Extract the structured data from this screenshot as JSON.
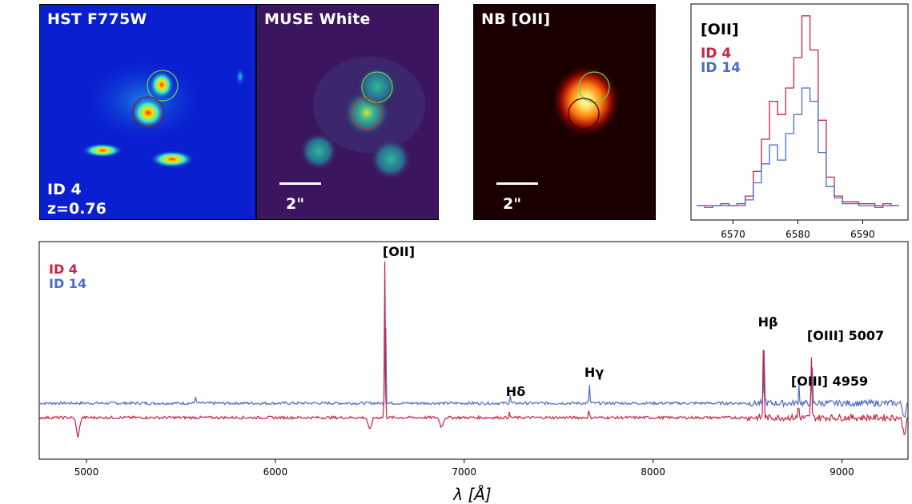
{
  "images": {
    "hst": {
      "title": "HST F775W",
      "id_label": "ID 4",
      "z_label": "z=0.76"
    },
    "muse": {
      "title": "MUSE White",
      "scale": "2\""
    },
    "nb": {
      "title": "NB [OII]",
      "scale": "2\""
    }
  },
  "colors": {
    "id4": "#cc2244",
    "id14": "#4a6cc8",
    "hst_bg": "#0a1fd0",
    "muse_bg": "#3b155e",
    "nb_bg": "#1a0000",
    "circle_red": "#c0392b",
    "circle_green": "#6ccf4f"
  },
  "chart_data": [
    {
      "type": "line",
      "title": "[OII]",
      "xlabel": "",
      "ylabel": "",
      "xlim": [
        6565,
        6596
      ],
      "xticks": [
        6570,
        6580,
        6590
      ],
      "legend": [
        "ID 4",
        "ID 14"
      ],
      "legend_position": "top-left",
      "drawstyle": "steps",
      "series": [
        {
          "name": "ID 4",
          "color": "#cc2244",
          "x": [
            6565,
            6566.25,
            6567.5,
            6568.75,
            6570,
            6571.25,
            6572.5,
            6573.75,
            6575,
            6576.25,
            6577.5,
            6578.75,
            6580,
            6581.25,
            6582.5,
            6583.75,
            6585,
            6586.25,
            6587.5,
            6588.75,
            6590,
            6591.25,
            6592.5,
            6593.75,
            6595
          ],
          "y": [
            0.0,
            0.0,
            0.0,
            0.01,
            0.0,
            0.01,
            0.05,
            0.18,
            0.35,
            0.55,
            0.48,
            0.62,
            0.78,
            1.0,
            0.82,
            0.45,
            0.15,
            0.05,
            0.02,
            0.02,
            0.01,
            0.01,
            0.0,
            0.01,
            0.0
          ]
        },
        {
          "name": "ID 14",
          "color": "#4a6cc8",
          "x": [
            6565,
            6566.25,
            6567.5,
            6568.75,
            6570,
            6571.25,
            6572.5,
            6573.75,
            6575,
            6576.25,
            6577.5,
            6578.75,
            6580,
            6581.25,
            6582.5,
            6583.75,
            6585,
            6586.25,
            6587.5,
            6588.75,
            6590,
            6591.25,
            6592.5,
            6593.75,
            6595
          ],
          "y": [
            0.0,
            -0.01,
            0.0,
            0.0,
            0.0,
            0.0,
            0.03,
            0.12,
            0.22,
            0.32,
            0.24,
            0.38,
            0.48,
            0.62,
            0.55,
            0.28,
            0.1,
            0.04,
            0.01,
            0.01,
            0.0,
            0.0,
            -0.01,
            0.0,
            0.0
          ]
        }
      ]
    },
    {
      "type": "line",
      "title": "",
      "xlabel": "λ [Å]",
      "ylabel": "",
      "xlim": [
        4750,
        9350
      ],
      "xticks": [
        5000,
        6000,
        7000,
        8000,
        9000
      ],
      "legend": [
        "ID 4",
        "ID 14"
      ],
      "legend_position": "top-left",
      "annotations": [
        {
          "text": "[OII]",
          "x": 6570
        },
        {
          "text": "Hδ",
          "x": 7240
        },
        {
          "text": "Hγ",
          "x": 7660
        },
        {
          "text": "Hβ",
          "x": 8580
        },
        {
          "text": "[OIII] 4959",
          "x": 8770
        },
        {
          "text": "[OIII] 5007",
          "x": 8820
        }
      ],
      "series": [
        {
          "name": "ID 4",
          "color": "#cc2244",
          "continuum": 0.08,
          "lines": [
            {
              "x": 6580,
              "h": 1.0
            },
            {
              "x": 8585,
              "h": 0.55
            },
            {
              "x": 8838,
              "h": 0.42
            },
            {
              "x": 8770,
              "h": 0.1
            },
            {
              "x": 7660,
              "h": 0.05
            },
            {
              "x": 7240,
              "h": 0.03
            }
          ],
          "absorptions": [
            {
              "x": 4955,
              "d": 0.12
            },
            {
              "x": 6500,
              "d": 0.08
            },
            {
              "x": 6880,
              "d": 0.06
            },
            {
              "x": 9330,
              "d": 0.1
            }
          ]
        },
        {
          "name": "ID 14",
          "color": "#4a6cc8",
          "continuum": 0.0,
          "lines": [
            {
              "x": 6583,
              "h": 0.65
            },
            {
              "x": 8588,
              "h": 0.36
            },
            {
              "x": 8842,
              "h": 0.3
            },
            {
              "x": 8773,
              "h": 0.12
            },
            {
              "x": 7663,
              "h": 0.12
            },
            {
              "x": 7244,
              "h": 0.05
            },
            {
              "x": 5577,
              "h": 0.05
            }
          ],
          "absorptions": [
            {
              "x": 9330,
              "d": 0.08
            }
          ]
        }
      ]
    }
  ]
}
